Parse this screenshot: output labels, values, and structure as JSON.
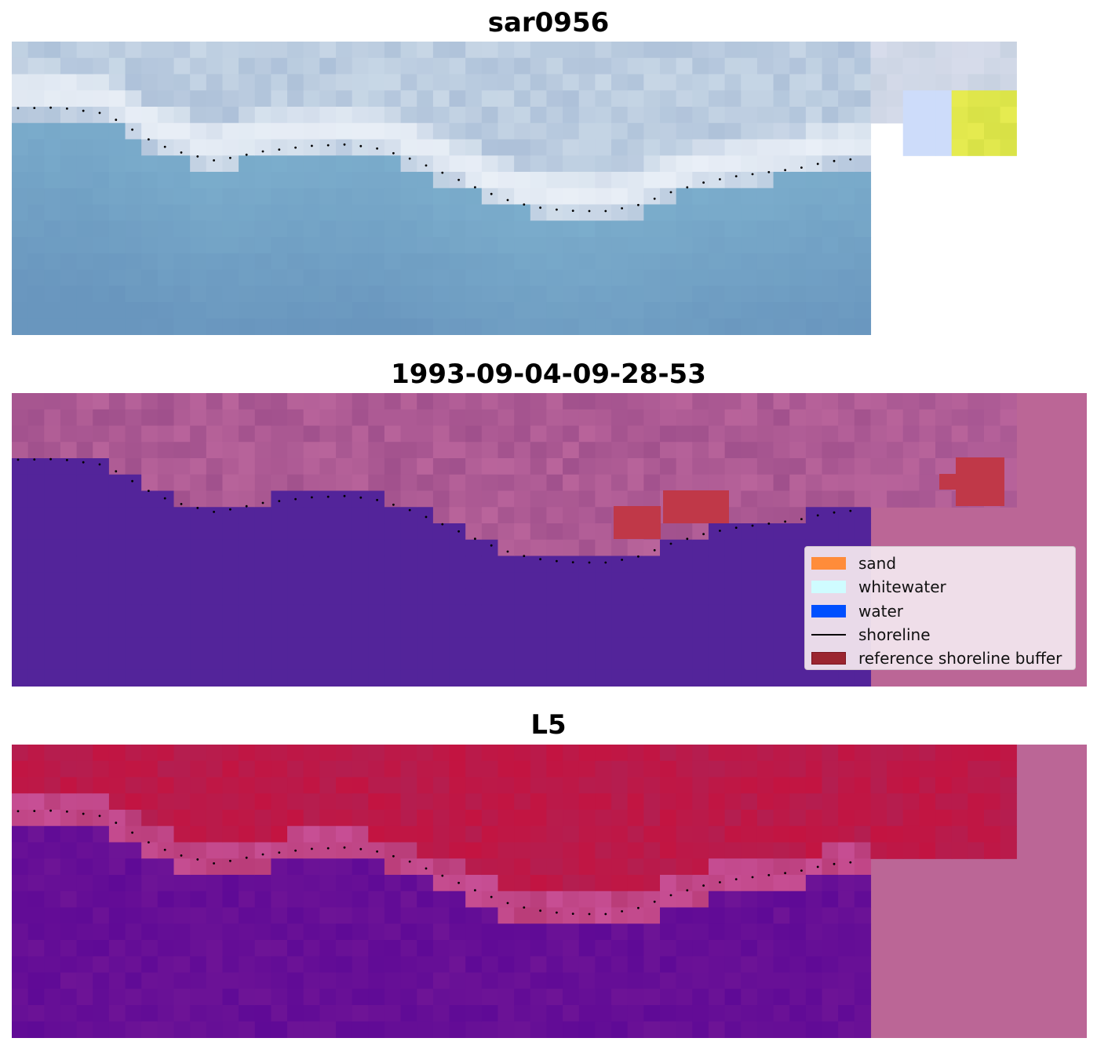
{
  "panels": [
    {
      "title": "sar0956",
      "kind": "rgb-composite"
    },
    {
      "title": "1993-09-04-09-28-53",
      "kind": "classification"
    },
    {
      "title": "L5",
      "kind": "index-map"
    }
  ],
  "legend": {
    "items": [
      {
        "label": "sand",
        "color": "#ff8c3a",
        "type": "patch"
      },
      {
        "label": "whitewater",
        "color": "#cffcff",
        "type": "patch"
      },
      {
        "label": "water",
        "color": "#0050ff",
        "type": "patch"
      },
      {
        "label": "shoreline",
        "color": "#000000",
        "type": "line"
      },
      {
        "label": "reference shoreline buffer",
        "color": "#9b2530",
        "type": "patch"
      }
    ]
  },
  "colors": {
    "water_class": "#53249a",
    "background_overlay": "#bb6696",
    "buffer": "#c03848",
    "shoreline_dots": "#000000"
  }
}
